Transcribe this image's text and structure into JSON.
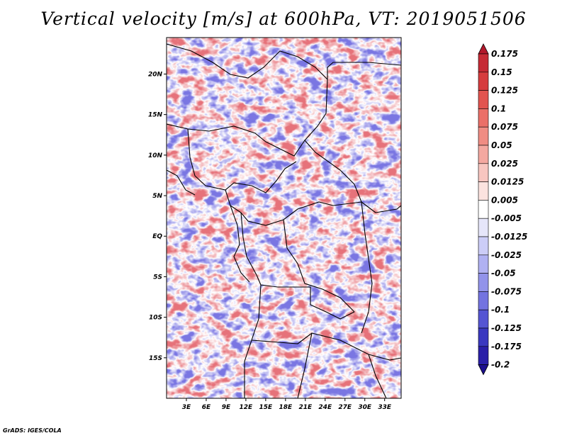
{
  "chart_data": {
    "type": "heatmap",
    "title": "Vertical velocity [m/s] at 600hPa, VT: 2019051506",
    "variable": "Vertical velocity",
    "units": "m/s",
    "level": "600hPa",
    "valid_time": "2019051506",
    "x_ticks": [
      "3E",
      "6E",
      "9E",
      "12E",
      "15E",
      "18E",
      "21E",
      "24E",
      "27E",
      "30E",
      "33E"
    ],
    "x_tick_values": [
      3,
      6,
      9,
      12,
      15,
      18,
      21,
      24,
      27,
      30,
      33
    ],
    "y_ticks": [
      "20N",
      "15N",
      "10N",
      "5N",
      "EQ",
      "5S",
      "10S",
      "15S"
    ],
    "y_tick_values": [
      20,
      15,
      10,
      5,
      0,
      -5,
      -10,
      -15
    ],
    "xlim": [
      0,
      35.5
    ],
    "ylim": [
      -20,
      24.5
    ],
    "colorbar": {
      "labels": [
        "0.175",
        "0.15",
        "0.125",
        "0.1",
        "0.075",
        "0.05",
        "0.025",
        "0.0125",
        "0.005",
        "-0.005",
        "-0.0125",
        "-0.025",
        "-0.05",
        "-0.075",
        "-0.1",
        "-0.125",
        "-0.175",
        "-0.2"
      ],
      "colors": [
        "#b2182b",
        "#c62a35",
        "#d63c3e",
        "#e2544f",
        "#eb6f68",
        "#f08c83",
        "#f4a8a0",
        "#f8c6c0",
        "#fce3df",
        "#ffffff",
        "#e6e6fa",
        "#cccdf7",
        "#b0b1f2",
        "#9293ea",
        "#7373e0",
        "#5555d3",
        "#3a38c0",
        "#2a1fa8",
        "#1c0f8e"
      ]
    }
  },
  "credit": "GrADS: IGES/COLA"
}
